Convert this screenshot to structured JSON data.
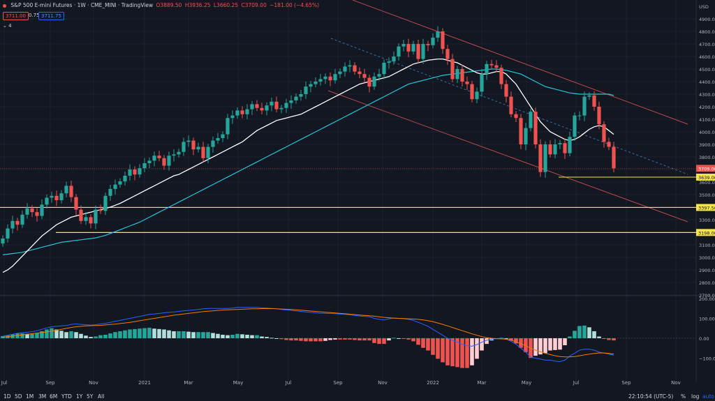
{
  "header": {
    "title": "S&P 500 E-mini Futures · 1W · CME_MINI · TradingView",
    "ohlc": {
      "o": "O3889.50",
      "h": "H3936.25",
      "l": "L3660.25",
      "c": "C3709.00",
      "chg": "−181.00 (−4.65%)"
    },
    "bid": "3711.00",
    "spread": "0.75",
    "ask": "3711.75",
    "indicator_toggle": "4"
  },
  "timeframes": [
    "1D",
    "5D",
    "1M",
    "3M",
    "6M",
    "YTD",
    "1Y",
    "5Y",
    "All"
  ],
  "status": {
    "clock": "22:10:54 (UTC-5)",
    "pct": "%",
    "log": "log",
    "auto": "auto"
  },
  "colors": {
    "bg": "#131722",
    "up": "#26a69a",
    "down": "#ef5350",
    "sma_fast": "#ffffff",
    "sma_slow": "#26c6da",
    "channel": "#b84a4a",
    "support": "#f5e642",
    "macd": "#2962ff",
    "signal": "#f57c00"
  },
  "chart_data": {
    "type": "candlestick",
    "ylim": [
      2700,
      5000
    ],
    "y_ticks": [
      "USD",
      "4900.00",
      "4800.00",
      "4700.00",
      "4600.00",
      "4500.00",
      "4400.00",
      "4300.00",
      "4200.00",
      "4100.00",
      "4000.00",
      "3900.00",
      "3800.00",
      "3700.00",
      "3600.00",
      "3500.00",
      "3400.00",
      "3300.00",
      "3200.00",
      "3100.00",
      "3000.00",
      "2900.00",
      "2800.00",
      "2700.00"
    ],
    "x_labels": [
      "Jul",
      "Sep",
      "Nov",
      "2021",
      "Mar",
      "May",
      "Jul",
      "Sep",
      "Nov",
      "2022",
      "Mar",
      "May",
      "Jul",
      "Sep",
      "Nov"
    ],
    "price_labels": [
      {
        "text": "3709.00",
        "value": 3709
      },
      {
        "text": "3639.00",
        "value": 3639
      },
      {
        "text": "3397.50",
        "value": 3397.5
      },
      {
        "text": "3198.00",
        "value": 3198
      }
    ],
    "support_levels": [
      3639,
      3397.5,
      3198
    ],
    "closes": [
      3150,
      3230,
      3290,
      3260,
      3340,
      3390,
      3360,
      3330,
      3420,
      3475,
      3490,
      3455,
      3510,
      3570,
      3480,
      3380,
      3290,
      3320,
      3270,
      3380,
      3370,
      3490,
      3545,
      3580,
      3605,
      3650,
      3700,
      3660,
      3710,
      3750,
      3770,
      3810,
      3790,
      3730,
      3810,
      3820,
      3840,
      3920,
      3930,
      3860,
      3880,
      3790,
      3880,
      3930,
      3950,
      3980,
      4110,
      4130,
      4170,
      4140,
      4180,
      4220,
      4190,
      4170,
      4210,
      4240,
      4180,
      4190,
      4230,
      4250,
      4280,
      4300,
      4360,
      4380,
      4400,
      4420,
      4440,
      4410,
      4460,
      4480,
      4520,
      4530,
      4480,
      4460,
      4430,
      4360,
      4440,
      4460,
      4550,
      4560,
      4600,
      4680,
      4700,
      4640,
      4700,
      4580,
      4700,
      4690,
      4750,
      4800,
      4660,
      4580,
      4420,
      4500,
      4400,
      4380,
      4260,
      4320,
      4460,
      4540,
      4530,
      4510,
      4380,
      4280,
      4140,
      4110,
      3900,
      4030,
      4160,
      3900,
      3680,
      3900,
      3820,
      3900,
      3910,
      3830,
      3960,
      4130,
      4130,
      4280,
      4290,
      4200,
      4060,
      3920,
      3880,
      3709
    ],
    "sma20": [
      2880,
      2900,
      2930,
      2970,
      3010,
      3050,
      3090,
      3130,
      3170,
      3200,
      3230,
      3260,
      3280,
      3300,
      3320,
      3330,
      3340,
      3350,
      3360,
      3370,
      3380,
      3390,
      3400,
      3415,
      3430,
      3450,
      3470,
      3490,
      3510,
      3530,
      3550,
      3570,
      3590,
      3610,
      3630,
      3650,
      3660,
      3680,
      3700,
      3720,
      3740,
      3760,
      3780,
      3800,
      3820,
      3840,
      3860,
      3880,
      3900,
      3920,
      3950,
      3980,
      4010,
      4030,
      4050,
      4070,
      4090,
      4100,
      4110,
      4120,
      4130,
      4140,
      4160,
      4180,
      4200,
      4220,
      4240,
      4260,
      4280,
      4300,
      4320,
      4340,
      4360,
      4380,
      4390,
      4400,
      4410,
      4420,
      4430,
      4440,
      4460,
      4480,
      4500,
      4520,
      4540,
      4550,
      4560,
      4570,
      4575,
      4580,
      4580,
      4570,
      4560,
      4550,
      4530,
      4510,
      4490,
      4470,
      4460,
      4460,
      4470,
      4480,
      4480,
      4460,
      4420,
      4380,
      4320,
      4260,
      4200,
      4140,
      4080,
      4040,
      4000,
      3980,
      3960,
      3940,
      3930,
      3940,
      3960,
      3990,
      4020,
      4040,
      4050,
      4040,
      4010,
      3980
    ],
    "sma50": [
      3020,
      3025,
      3030,
      3035,
      3040,
      3050,
      3060,
      3070,
      3080,
      3090,
      3100,
      3110,
      3120,
      3125,
      3130,
      3135,
      3140,
      3145,
      3150,
      3155,
      3165,
      3175,
      3190,
      3205,
      3220,
      3235,
      3250,
      3265,
      3280,
      3300,
      3320,
      3340,
      3360,
      3380,
      3400,
      3420,
      3440,
      3460,
      3480,
      3500,
      3520,
      3540,
      3560,
      3580,
      3600,
      3620,
      3640,
      3660,
      3680,
      3700,
      3720,
      3740,
      3760,
      3780,
      3800,
      3820,
      3840,
      3860,
      3880,
      3900,
      3920,
      3940,
      3960,
      3980,
      4000,
      4020,
      4040,
      4060,
      4080,
      4100,
      4120,
      4140,
      4160,
      4180,
      4200,
      4220,
      4240,
      4260,
      4280,
      4300,
      4320,
      4340,
      4360,
      4380,
      4390,
      4400,
      4410,
      4420,
      4430,
      4440,
      4450,
      4455,
      4460,
      4465,
      4470,
      4475,
      4480,
      4485,
      4490,
      4495,
      4500,
      4500,
      4495,
      4490,
      4480,
      4470,
      4460,
      4440,
      4420,
      4400,
      4380,
      4360,
      4350,
      4340,
      4330,
      4320,
      4310,
      4305,
      4300,
      4300,
      4300,
      4300,
      4300,
      4300,
      4300,
      4290
    ],
    "channel": [
      {
        "points": [
          [
            80,
            5060
          ],
          [
            123,
            4060
          ]
        ]
      },
      {
        "points": [
          [
            80,
            4280
          ],
          [
            123,
            3290
          ]
        ]
      }
    ],
    "macd_ylim": [
      -200,
      200
    ],
    "macd_ticks": [
      200,
      100,
      0,
      -100
    ],
    "macd_tick_labels": [
      "200.00",
      "100.00",
      "0.00",
      "−100.00"
    ],
    "macd": [
      10,
      15,
      20,
      25,
      28,
      30,
      33,
      38,
      45,
      52,
      58,
      60,
      62,
      64,
      70,
      72,
      70,
      68,
      66,
      68,
      72,
      75,
      80,
      85,
      90,
      95,
      100,
      105,
      110,
      115,
      120,
      122,
      125,
      128,
      130,
      132,
      135,
      138,
      140,
      142,
      145,
      148,
      150,
      150,
      150,
      150,
      150,
      152,
      155,
      155,
      155,
      155,
      155,
      153,
      152,
      150,
      148,
      145,
      142,
      140,
      138,
      135,
      132,
      130,
      128,
      126,
      125,
      125,
      124,
      122,
      120,
      118,
      115,
      112,
      110,
      108,
      100,
      95,
      92,
      98,
      102,
      100,
      98,
      95,
      90,
      80,
      70,
      60,
      45,
      30,
      15,
      0,
      -10,
      -20,
      -30,
      -38,
      -40,
      -32,
      -20,
      -10,
      -5,
      -2,
      -2,
      -5,
      -15,
      -30,
      -50,
      -70,
      -95,
      -100,
      -105,
      -110,
      -110,
      -115,
      -118,
      -110,
      -90,
      -75,
      -60,
      -55,
      -55,
      -60,
      -70,
      -75,
      -80,
      -85
    ],
    "signal": [
      5,
      8,
      11,
      14,
      17,
      20,
      23,
      26,
      29,
      32,
      35,
      40,
      45,
      50,
      54,
      58,
      60,
      62,
      63,
      64,
      65,
      67,
      69,
      71,
      74,
      77,
      80,
      84,
      88,
      92,
      96,
      100,
      104,
      108,
      112,
      116,
      119,
      122,
      125,
      128,
      131,
      134,
      136,
      138,
      140,
      142,
      143,
      144,
      145,
      146,
      147,
      148,
      148,
      149,
      149,
      149,
      148,
      147,
      146,
      145,
      143,
      141,
      139,
      137,
      135,
      133,
      131,
      129,
      127,
      125,
      123,
      121,
      119,
      117,
      115,
      113,
      111,
      108,
      105,
      103,
      101,
      100,
      99,
      98,
      97,
      95,
      92,
      88,
      83,
      77,
      70,
      62,
      54,
      46,
      38,
      30,
      22,
      15,
      8,
      3,
      0,
      -2,
      -3,
      -5,
      -10,
      -18,
      -28,
      -38,
      -50,
      -60,
      -68,
      -76,
      -82,
      -88,
      -92,
      -94,
      -94,
      -92,
      -88,
      -84,
      -80,
      -76,
      -74,
      -74,
      -76,
      -80
    ]
  }
}
